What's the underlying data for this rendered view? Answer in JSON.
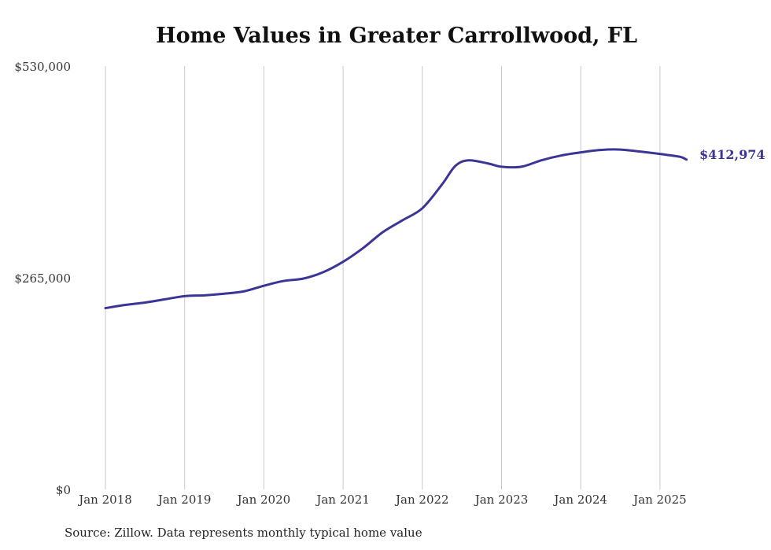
{
  "chart_data": {
    "type": "line",
    "title": "Home Values in Greater Carrollwood, FL",
    "xlabel": "",
    "ylabel": "",
    "ylim": [
      0,
      530000
    ],
    "y_ticks": [
      {
        "value": 0,
        "label": "$0"
      },
      {
        "value": 265000,
        "label": "$265,000"
      },
      {
        "value": 530000,
        "label": "$530,000"
      }
    ],
    "x_ticks": [
      {
        "value": "2018-01",
        "label": "Jan 2018"
      },
      {
        "value": "2019-01",
        "label": "Jan 2019"
      },
      {
        "value": "2020-01",
        "label": "Jan 2020"
      },
      {
        "value": "2021-01",
        "label": "Jan 2021"
      },
      {
        "value": "2022-01",
        "label": "Jan 2022"
      },
      {
        "value": "2023-01",
        "label": "Jan 2023"
      },
      {
        "value": "2024-01",
        "label": "Jan 2024"
      },
      {
        "value": "2025-01",
        "label": "Jan 2025"
      }
    ],
    "grid": "vertical",
    "series": [
      {
        "color": "#3b3597",
        "end_label": "$412,974",
        "points": [
          {
            "x": "2018-01",
            "y": 227000
          },
          {
            "x": "2018-04",
            "y": 231000
          },
          {
            "x": "2018-07",
            "y": 234000
          },
          {
            "x": "2018-10",
            "y": 238000
          },
          {
            "x": "2019-01",
            "y": 242000
          },
          {
            "x": "2019-04",
            "y": 243000
          },
          {
            "x": "2019-07",
            "y": 245000
          },
          {
            "x": "2019-10",
            "y": 248000
          },
          {
            "x": "2020-01",
            "y": 255000
          },
          {
            "x": "2020-04",
            "y": 261000
          },
          {
            "x": "2020-07",
            "y": 264000
          },
          {
            "x": "2020-10",
            "y": 272000
          },
          {
            "x": "2021-01",
            "y": 285000
          },
          {
            "x": "2021-04",
            "y": 302000
          },
          {
            "x": "2021-07",
            "y": 322000
          },
          {
            "x": "2021-10",
            "y": 337000
          },
          {
            "x": "2022-01",
            "y": 352000
          },
          {
            "x": "2022-04",
            "y": 382000
          },
          {
            "x": "2022-06",
            "y": 405000
          },
          {
            "x": "2022-08",
            "y": 412000
          },
          {
            "x": "2022-11",
            "y": 408000
          },
          {
            "x": "2023-01",
            "y": 404000
          },
          {
            "x": "2023-04",
            "y": 404000
          },
          {
            "x": "2023-07",
            "y": 412000
          },
          {
            "x": "2023-10",
            "y": 418000
          },
          {
            "x": "2024-01",
            "y": 422000
          },
          {
            "x": "2024-04",
            "y": 425000
          },
          {
            "x": "2024-07",
            "y": 425500
          },
          {
            "x": "2024-10",
            "y": 423000
          },
          {
            "x": "2025-01",
            "y": 420000
          },
          {
            "x": "2025-04",
            "y": 416500
          },
          {
            "x": "2025-05",
            "y": 412974
          }
        ]
      }
    ],
    "source": "Source: Zillow. Data represents monthly typical home value"
  }
}
